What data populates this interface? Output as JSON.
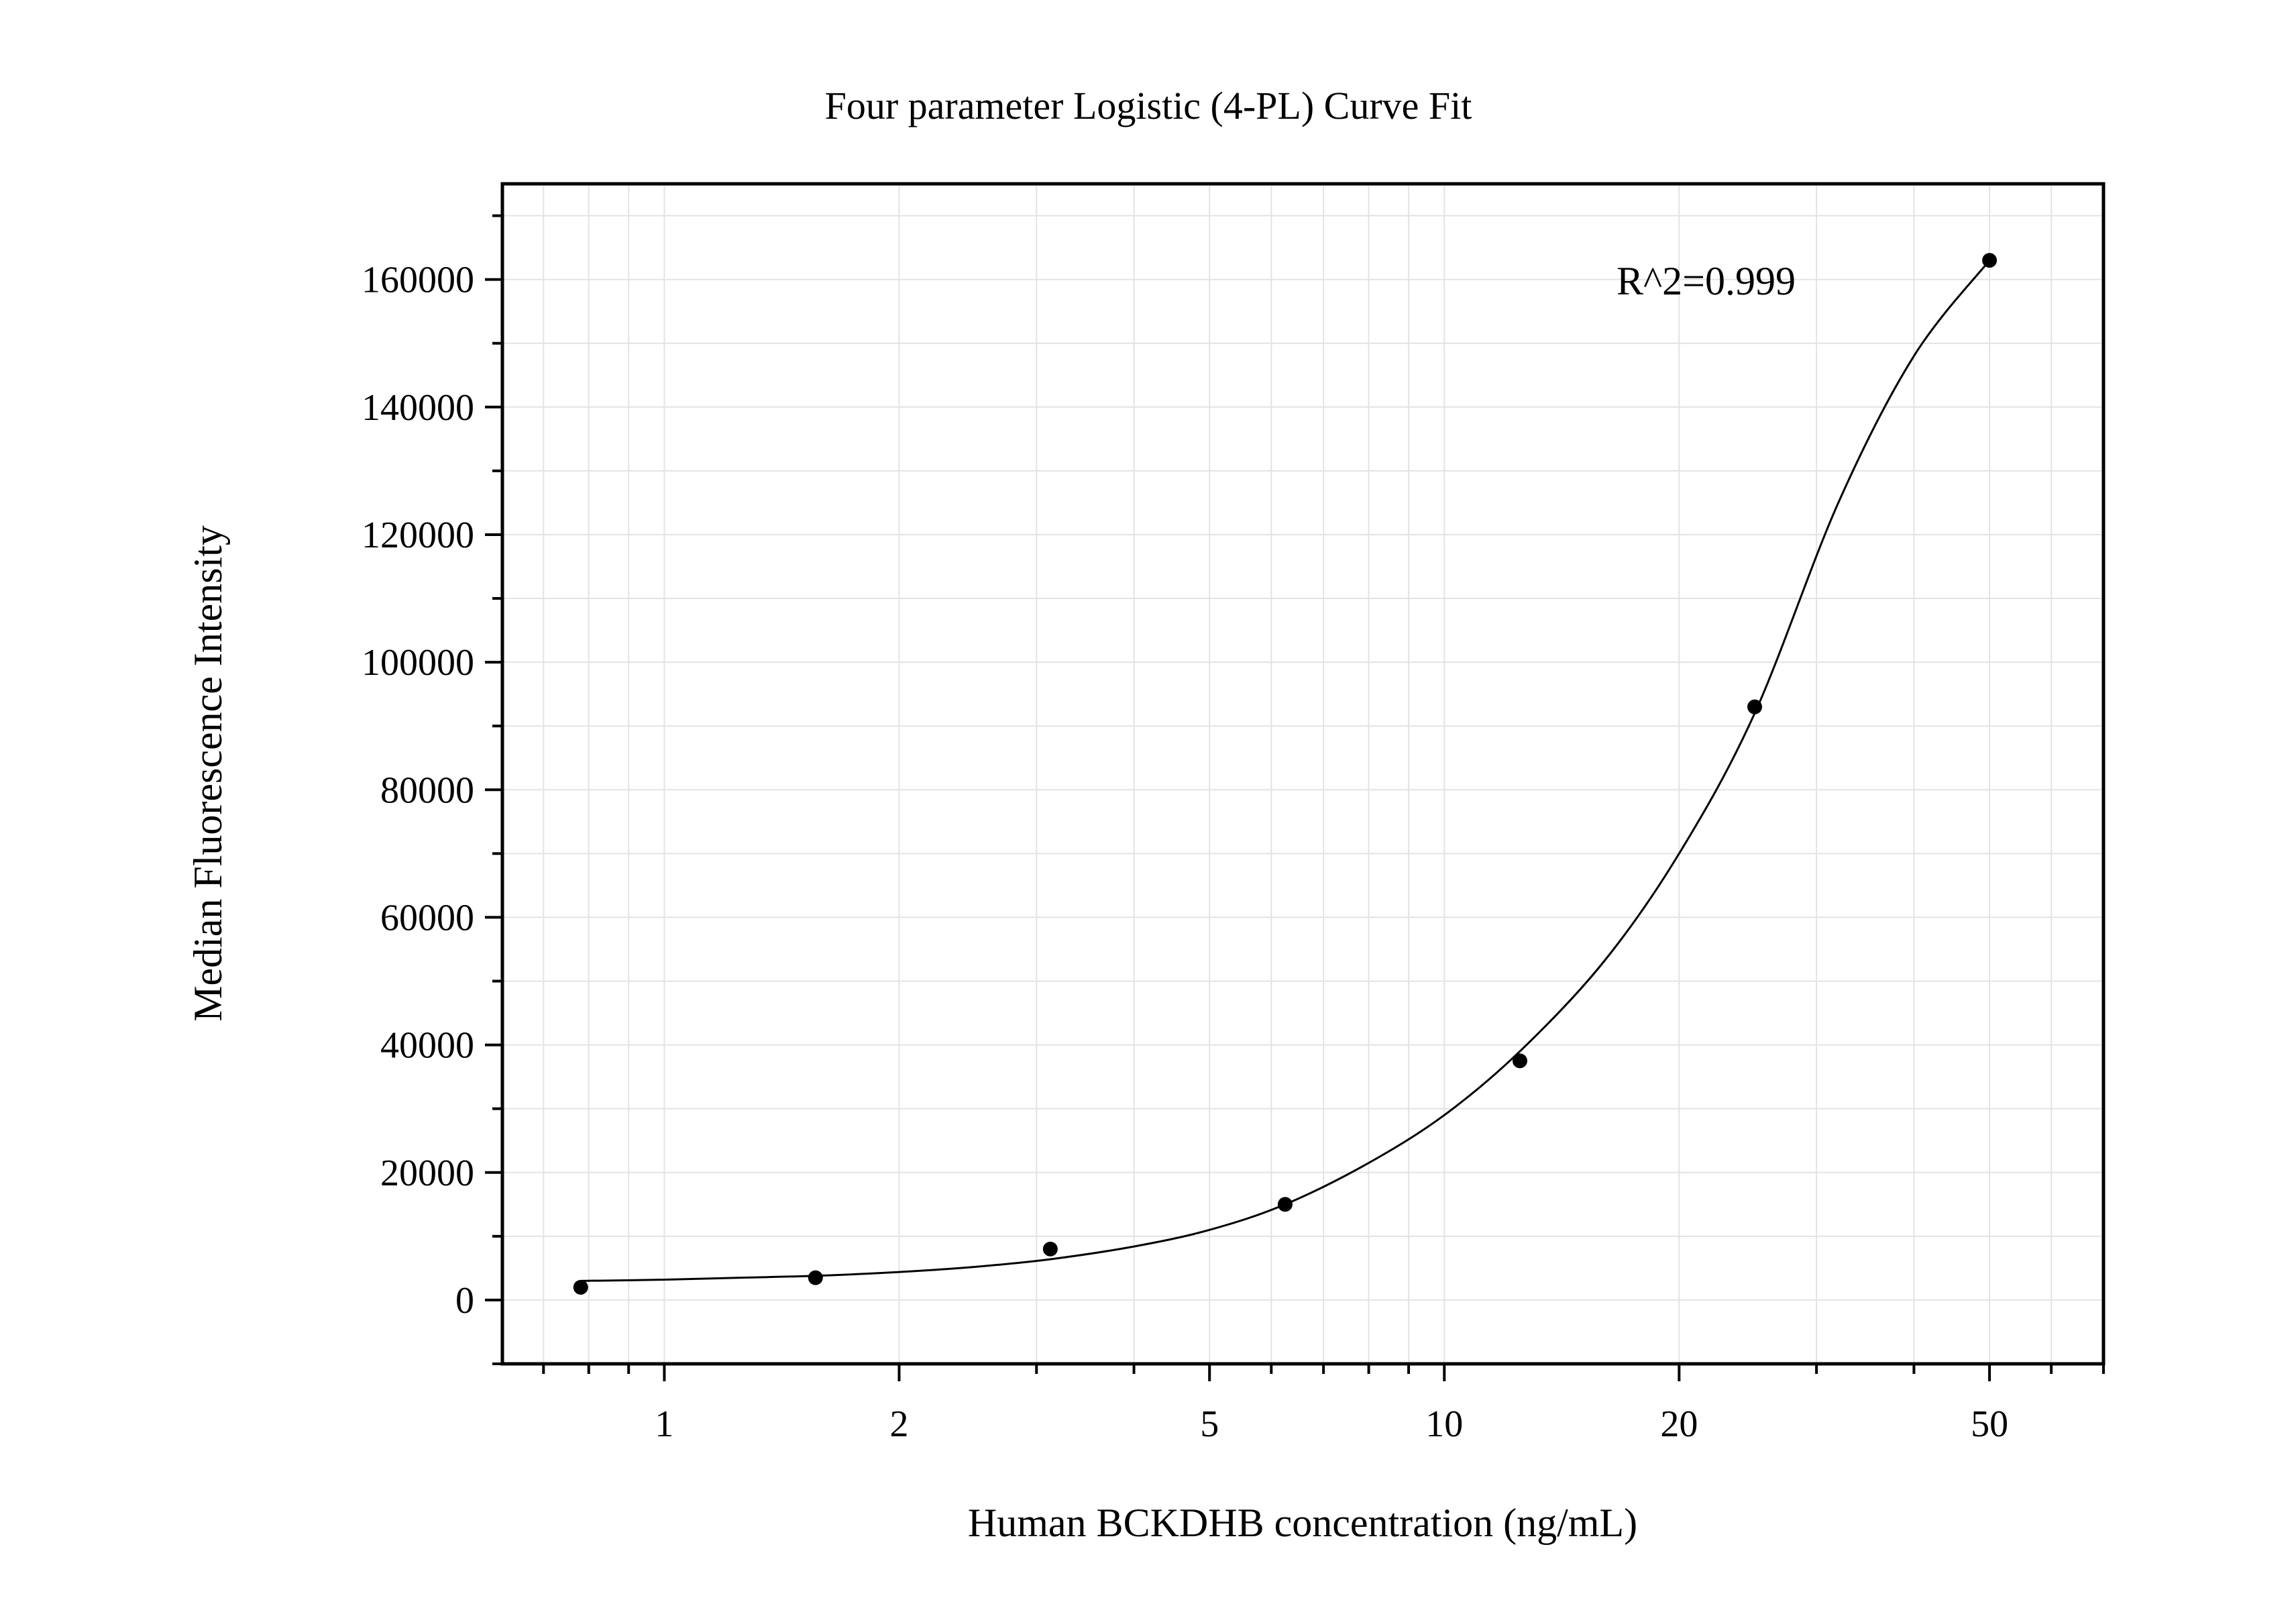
{
  "chart_data": {
    "type": "scatter",
    "title": "Four parameter Logistic (4-PL) Curve Fit",
    "xlabel": "Human BCKDHB concentration (ng/mL)",
    "ylabel": "Median Fluorescence Intensity",
    "xscale": "log",
    "xlim": [
      0.62,
      70
    ],
    "ylim": [
      -10000,
      175000
    ],
    "xticks": [
      1,
      2,
      5,
      10,
      20,
      50
    ],
    "xtick_labels": [
      "1",
      "2",
      "5",
      "10",
      "20",
      "50"
    ],
    "yticks": [
      0,
      20000,
      40000,
      60000,
      80000,
      100000,
      120000,
      140000,
      160000
    ],
    "ytick_labels": [
      "0",
      "20000",
      "40000",
      "60000",
      "80000",
      "100000",
      "120000",
      "140000",
      "160000"
    ],
    "grid": true,
    "legend": "none",
    "annotation": "R^2=0.999",
    "series": [
      {
        "points": {
          "x": [
            0.78125,
            1.5625,
            3.125,
            6.25,
            12.5,
            25,
            50
          ],
          "y": [
            2000,
            3500,
            8000,
            15000,
            37500,
            93000,
            163000
          ]
        }
      }
    ],
    "fit_curve": {
      "model": "4-PL",
      "x": [
        0.78125,
        1,
        1.25,
        1.5625,
        2,
        2.5,
        3.125,
        4,
        5,
        6.25,
        8,
        10,
        12.5,
        16,
        20,
        25,
        32,
        40,
        50
      ],
      "y": [
        3000,
        3200,
        3500,
        3800,
        4400,
        5200,
        6400,
        8400,
        11000,
        15000,
        21500,
        29000,
        39000,
        53000,
        70000,
        92000,
        125000,
        148000,
        163000
      ]
    },
    "colors": {
      "background": "#ffffff",
      "axis": "#000000",
      "grid": "#e3e3e3",
      "marker": "#000000",
      "curve": "#000000"
    }
  }
}
